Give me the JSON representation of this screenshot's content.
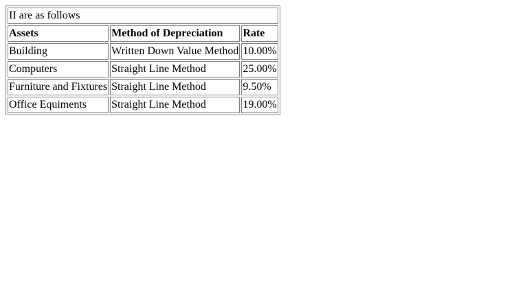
{
  "table": {
    "caption": "II are as follows",
    "headers": [
      "Assets",
      "Method of Depreciation",
      "Rate"
    ],
    "rows": [
      [
        "Building",
        "Written Down Value Method",
        "10.00%"
      ],
      [
        "Computers",
        "Straight Line Method",
        "25.00%"
      ],
      [
        "Furniture and Fixtures",
        "Straight Line Method",
        "9.50%"
      ],
      [
        "Office Equiments",
        "Straight Line Method",
        "19.00%"
      ]
    ]
  }
}
